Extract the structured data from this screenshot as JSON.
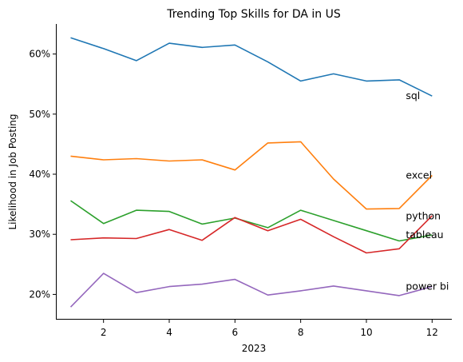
{
  "chart_data": {
    "type": "line",
    "title": "Trending Top Skills for DA in US",
    "xlabel": "2023",
    "ylabel": "Likelihood in Job Posting",
    "xlim": [
      0.55,
      12.6
    ],
    "ylim": [
      15.8,
      65.0
    ],
    "xticks": [
      2,
      4,
      6,
      8,
      10,
      12
    ],
    "yticks": [
      20,
      30,
      40,
      50,
      60
    ],
    "ytick_format": "percent",
    "x": [
      1,
      2,
      3,
      4,
      5,
      6,
      7,
      8,
      9,
      10,
      11,
      12
    ],
    "series": [
      {
        "name": "sql",
        "color": "#1f77b4",
        "values": [
          62.7,
          60.9,
          58.9,
          61.8,
          61.1,
          61.5,
          58.7,
          55.5,
          56.7,
          55.5,
          55.7,
          53.0
        ]
      },
      {
        "name": "excel",
        "color": "#ff7f0e",
        "values": [
          43.0,
          42.4,
          42.6,
          42.2,
          42.4,
          40.7,
          45.2,
          45.4,
          39.2,
          34.2,
          34.3,
          39.8
        ]
      },
      {
        "name": "python",
        "color": "#2ca02c",
        "values": [
          35.6,
          31.8,
          34.0,
          33.8,
          31.7,
          32.7,
          31.1,
          34.0,
          32.3,
          30.6,
          28.9,
          29.9
        ]
      },
      {
        "name": "tableau",
        "color": "#d62728",
        "values": [
          29.1,
          29.4,
          29.3,
          30.8,
          29.0,
          32.8,
          30.6,
          32.5,
          29.6,
          26.9,
          27.6,
          33.1
        ]
      },
      {
        "name": "power bi",
        "color": "#9467bd",
        "values": [
          17.9,
          23.5,
          20.3,
          21.3,
          21.7,
          22.5,
          19.9,
          20.6,
          21.4,
          20.6,
          19.8,
          21.3
        ]
      }
    ],
    "label_positions": [
      {
        "series": "sql",
        "x": 11.2,
        "y": 53.0
      },
      {
        "series": "excel",
        "x": 11.2,
        "y": 39.8
      },
      {
        "series": "python",
        "x": 11.2,
        "y": 33.0
      },
      {
        "series": "tableau",
        "x": 11.2,
        "y": 29.9
      },
      {
        "series": "power bi",
        "x": 11.2,
        "y": 21.3
      }
    ],
    "grid": false,
    "legend": "none"
  }
}
